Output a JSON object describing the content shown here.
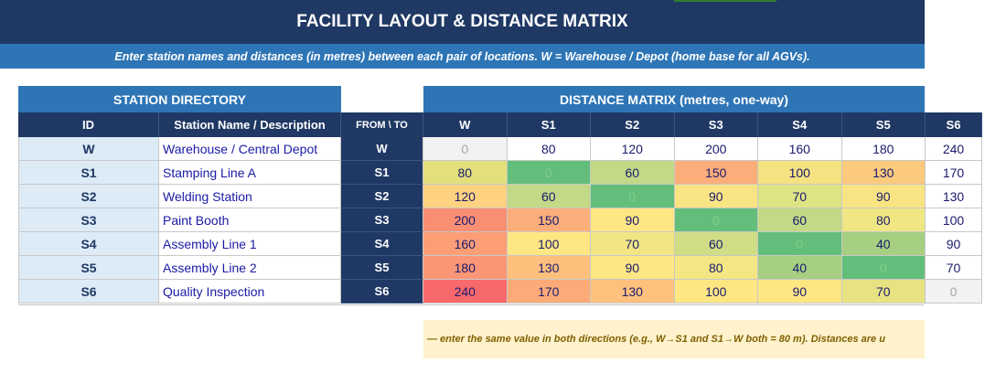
{
  "title": "FACILITY LAYOUT  &  DISTANCE MATRIX",
  "subtitle": "Enter station names and distances (in metres) between each pair of locations. W = Warehouse / Depot (home base for all AGVs).",
  "directory": {
    "header": "STATION DIRECTORY",
    "col_id": "ID",
    "col_name": "Station Name / Description",
    "rows": [
      {
        "id": "W",
        "name": "Warehouse / Central Depot"
      },
      {
        "id": "S1",
        "name": "Stamping Line A"
      },
      {
        "id": "S2",
        "name": "Welding Station"
      },
      {
        "id": "S3",
        "name": "Paint Booth"
      },
      {
        "id": "S4",
        "name": "Assembly Line 1"
      },
      {
        "id": "S5",
        "name": "Assembly Line 2"
      },
      {
        "id": "S6",
        "name": "Quality Inspection"
      }
    ]
  },
  "matrix": {
    "header": "DISTANCE MATRIX  (metres, one-way)",
    "corner": "FROM \\ TO",
    "cols": [
      "W",
      "S1",
      "S2",
      "S3",
      "S4",
      "S5",
      "S6"
    ],
    "rows": [
      {
        "from": "W",
        "values": [
          "0",
          "80",
          "120",
          "200",
          "160",
          "180",
          "240"
        ],
        "colors": [
          "#f2f2f2",
          "#ffffff",
          "#ffffff",
          "#ffffff",
          "#ffffff",
          "#ffffff",
          "#ffffff"
        ]
      },
      {
        "from": "S1",
        "values": [
          "80",
          "0",
          "60",
          "150",
          "100",
          "130",
          "170"
        ],
        "colors": [
          "#e3e07c",
          "#63be7b",
          "#c2d986",
          "#fbae7a",
          "#f5e281",
          "#fcca7d",
          "#ffffff"
        ]
      },
      {
        "from": "S2",
        "values": [
          "120",
          "60",
          "0",
          "90",
          "70",
          "90",
          "130"
        ],
        "colors": [
          "#fed280",
          "#c2d986",
          "#63be7b",
          "#f8e482",
          "#dde483",
          "#f8e482",
          "#ffffff"
        ]
      },
      {
        "from": "S3",
        "values": [
          "200",
          "150",
          "90",
          "0",
          "60",
          "80",
          "100"
        ],
        "colors": [
          "#f98e73",
          "#fbae7a",
          "#fee683",
          "#63be7b",
          "#c2d986",
          "#f0e783",
          "#ffffff"
        ]
      },
      {
        "from": "S4",
        "values": [
          "160",
          "100",
          "70",
          "60",
          "0",
          "40",
          "90"
        ],
        "colors": [
          "#fb9e76",
          "#fee683",
          "#f1e683",
          "#d0dd84",
          "#63be7b",
          "#a6cf82",
          "#ffffff"
        ]
      },
      {
        "from": "S5",
        "values": [
          "180",
          "130",
          "90",
          "80",
          "40",
          "0",
          "70"
        ],
        "colors": [
          "#fa9675",
          "#fdc07c",
          "#fee683",
          "#f2e783",
          "#a6cf82",
          "#63be7b",
          "#ffffff"
        ]
      },
      {
        "from": "S6",
        "values": [
          "240",
          "170",
          "130",
          "100",
          "90",
          "70",
          "0"
        ],
        "colors": [
          "#f8696b",
          "#fcaa78",
          "#fdc17d",
          "#fee683",
          "#fee683",
          "#e7e382",
          "#f2f2f2"
        ]
      }
    ]
  },
  "note": "— enter the same value in both directions (e.g., W→S1 and S1→W both = 80 m).  Distances are u"
}
